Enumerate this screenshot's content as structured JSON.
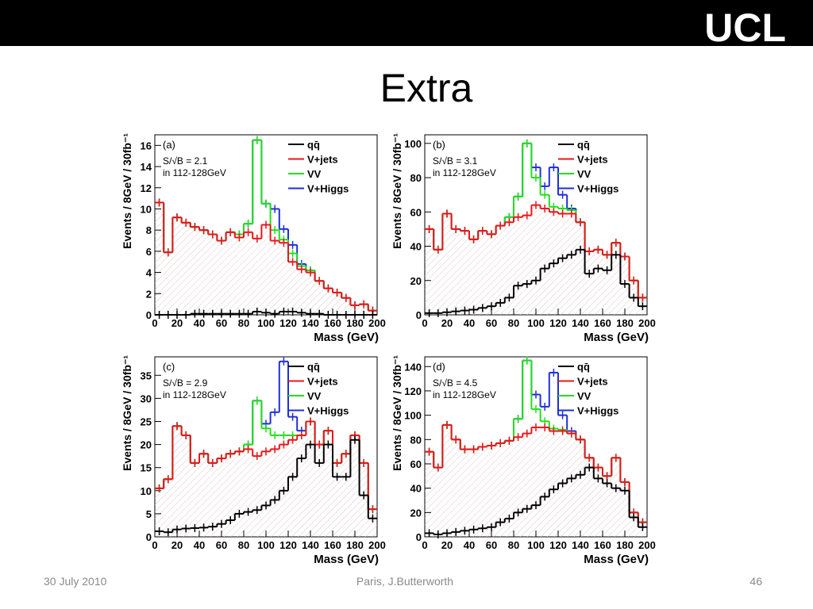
{
  "slide": {
    "title": "Extra",
    "logo": "UCL",
    "date": "30 July 2010",
    "author": "Paris, J.Butterworth",
    "page": "46"
  },
  "chart_data": [
    {
      "type": "histogram",
      "label": "(a)",
      "annotations": [
        "S/√B = 2.1",
        "in 112-128GeV"
      ],
      "xlabel": "Mass (GeV)",
      "ylabel": "Events / 8GeV / 30fb⁻¹",
      "bins": [
        0,
        8,
        16,
        24,
        32,
        40,
        48,
        56,
        64,
        72,
        80,
        88,
        96,
        104,
        112,
        120,
        128,
        136,
        144,
        152,
        160,
        168,
        176,
        184,
        192,
        200
      ],
      "xlim": [
        0,
        200
      ],
      "xticks": [
        0,
        20,
        40,
        60,
        80,
        100,
        120,
        140,
        160,
        180,
        200
      ],
      "ylim": [
        0,
        17
      ],
      "yticks": [
        0,
        2,
        4,
        6,
        8,
        10,
        12,
        14,
        16
      ],
      "stacked": true,
      "legend": "upper right",
      "series": [
        {
          "name": "qq̄",
          "color": "#000000",
          "values": [
            0,
            0,
            0,
            0,
            0.1,
            0.1,
            0.1,
            0.1,
            0.1,
            0.1,
            0.1,
            0.3,
            0.2,
            0.1,
            0.3,
            0.3,
            0.2,
            0.1,
            0.1,
            0,
            0,
            0,
            0,
            0,
            0
          ]
        },
        {
          "name": "V+jets",
          "color": "#e8161b",
          "values": [
            10.6,
            5.9,
            9.2,
            8.7,
            8.2,
            7.9,
            7.5,
            6.9,
            7.7,
            7.2,
            7.7,
            6.9,
            8.3,
            6.9,
            6.5,
            4.7,
            4.1,
            3.9,
            3.1,
            2.5,
            2.1,
            1.6,
            0.9,
            1.0,
            0.4
          ]
        },
        {
          "name": "VV",
          "color": "#22e01c",
          "values": [
            0,
            0,
            0,
            0,
            0,
            0,
            0,
            0,
            0,
            0.3,
            0.8,
            9.3,
            2.0,
            1.0,
            0.3,
            0.8,
            0.3,
            0.2,
            0,
            0,
            0,
            0,
            0,
            0,
            0
          ]
        },
        {
          "name": "V+Higgs",
          "color": "#1f2fd8",
          "values": [
            0,
            0,
            0,
            0,
            0,
            0,
            0,
            0,
            0,
            0,
            0,
            0,
            0,
            2.0,
            1.0,
            0.8,
            0.2,
            0,
            0,
            0,
            0,
            0,
            0,
            0,
            0
          ]
        }
      ]
    },
    {
      "type": "histogram",
      "label": "(b)",
      "annotations": [
        "S/√B = 3.1",
        "in 112-128GeV"
      ],
      "xlabel": "Mass (GeV)",
      "ylabel": "Events / 8GeV / 30fb⁻¹",
      "bins": [
        0,
        8,
        16,
        24,
        32,
        40,
        48,
        56,
        64,
        72,
        80,
        88,
        96,
        104,
        112,
        120,
        128,
        136,
        144,
        152,
        160,
        168,
        176,
        184,
        192,
        200
      ],
      "xlim": [
        0,
        200
      ],
      "xticks": [
        0,
        20,
        40,
        60,
        80,
        100,
        120,
        140,
        160,
        180,
        200
      ],
      "ylim": [
        0,
        105
      ],
      "yticks": [
        0,
        20,
        40,
        60,
        80,
        100
      ],
      "stacked": true,
      "legend": "upper right",
      "series": [
        {
          "name": "qq̄",
          "color": "#000000",
          "values": [
            1,
            1,
            1.5,
            2,
            2.5,
            3,
            4,
            5,
            7,
            10,
            17,
            18,
            20,
            27,
            30,
            33,
            35,
            38,
            24,
            27,
            26,
            35,
            18,
            10,
            5
          ]
        },
        {
          "name": "V+jets",
          "color": "#e8161b",
          "values": [
            49,
            37,
            57.5,
            48,
            46.5,
            41,
            45,
            42,
            45,
            44,
            40,
            40,
            44,
            35,
            30,
            26,
            24,
            16,
            13,
            11,
            9,
            7,
            16,
            10,
            5
          ]
        },
        {
          "name": "VV",
          "color": "#22e01c",
          "values": [
            0,
            0,
            0,
            0,
            0,
            0,
            0,
            0,
            0,
            3,
            12,
            42,
            16,
            8,
            3,
            3,
            2,
            0,
            0,
            0,
            0,
            0,
            0,
            0,
            0
          ]
        },
        {
          "name": "V+Higgs",
          "color": "#1f2fd8",
          "values": [
            0,
            0,
            0,
            0,
            0,
            0,
            0,
            0,
            0,
            0,
            0,
            0,
            6,
            5,
            23,
            8,
            1,
            0,
            0,
            0,
            0,
            0,
            0,
            0,
            0
          ]
        }
      ]
    },
    {
      "type": "histogram",
      "label": "(c)",
      "annotations": [
        "S/√B = 2.9",
        "in 112-128GeV"
      ],
      "xlabel": "Mass (GeV)",
      "ylabel": "Events / 8GeV / 30fb⁻¹",
      "bins": [
        0,
        8,
        16,
        24,
        32,
        40,
        48,
        56,
        64,
        72,
        80,
        88,
        96,
        104,
        112,
        120,
        128,
        136,
        144,
        152,
        160,
        168,
        176,
        184,
        192,
        200
      ],
      "xlim": [
        0,
        200
      ],
      "xticks": [
        0,
        20,
        40,
        60,
        80,
        100,
        120,
        140,
        160,
        180,
        200
      ],
      "ylim": [
        0,
        39
      ],
      "yticks": [
        0,
        5,
        10,
        15,
        20,
        25,
        30,
        35
      ],
      "stacked": true,
      "legend": "upper right",
      "series": [
        {
          "name": "qq̄",
          "color": "#000000",
          "values": [
            1.2,
            1.0,
            1.6,
            1.8,
            1.9,
            2.0,
            2.2,
            2.8,
            3.6,
            5.0,
            5.4,
            5.8,
            6.8,
            8,
            10,
            13,
            17,
            20,
            16,
            20,
            13,
            13,
            21,
            9,
            4
          ]
        },
        {
          "name": "V+jets",
          "color": "#e8161b",
          "values": [
            9.3,
            11.5,
            22.4,
            20.2,
            14.1,
            16,
            13.8,
            14.2,
            14.4,
            13.5,
            13.6,
            11.7,
            11.7,
            11,
            10,
            8,
            5,
            5,
            4,
            3,
            3,
            5,
            1,
            7,
            2
          ]
        },
        {
          "name": "VV",
          "color": "#22e01c",
          "values": [
            0,
            0,
            0,
            0,
            0,
            0,
            0,
            0,
            0,
            0,
            1,
            12,
            5,
            3,
            2,
            1,
            0,
            0,
            0,
            0,
            0,
            0,
            0,
            0,
            0
          ]
        },
        {
          "name": "V+Higgs",
          "color": "#1f2fd8",
          "values": [
            0,
            0,
            0,
            0,
            0,
            0,
            0,
            0,
            0,
            0,
            0,
            0,
            1,
            5,
            16,
            4,
            1,
            0,
            0,
            0,
            0,
            0,
            0,
            0,
            0
          ]
        }
      ]
    },
    {
      "type": "histogram",
      "label": "(d)",
      "annotations": [
        "S/√B = 4.5",
        "in 112-128GeV"
      ],
      "xlabel": "Mass (GeV)",
      "ylabel": "Events / 8GeV / 30fb⁻¹",
      "bins": [
        0,
        8,
        16,
        24,
        32,
        40,
        48,
        56,
        64,
        72,
        80,
        88,
        96,
        104,
        112,
        120,
        128,
        136,
        144,
        152,
        160,
        168,
        176,
        184,
        192,
        200
      ],
      "xlim": [
        0,
        200
      ],
      "xticks": [
        0,
        20,
        40,
        60,
        80,
        100,
        120,
        140,
        160,
        180,
        200
      ],
      "ylim": [
        0,
        148
      ],
      "yticks": [
        0,
        20,
        40,
        60,
        80,
        100,
        120,
        140
      ],
      "stacked": true,
      "legend": "upper right",
      "series": [
        {
          "name": "qq̄",
          "color": "#000000",
          "values": [
            3,
            2,
            3,
            4,
            5,
            6,
            7,
            8,
            12,
            15,
            20,
            23,
            26,
            33,
            39,
            44,
            48,
            51,
            57,
            48,
            44,
            40,
            38,
            16,
            8
          ]
        },
        {
          "name": "V+jets",
          "color": "#e8161b",
          "values": [
            67,
            55,
            89,
            76,
            67,
            66,
            67,
            67,
            65,
            64,
            62,
            62,
            64,
            57,
            48,
            43,
            37,
            29,
            8,
            9,
            6,
            25,
            7,
            4,
            4
          ]
        },
        {
          "name": "VV",
          "color": "#22e01c",
          "values": [
            0,
            0,
            0,
            0,
            0,
            0,
            0,
            0,
            0,
            0,
            15,
            60,
            15,
            5,
            2,
            1,
            0,
            0,
            0,
            0,
            0,
            0,
            0,
            0,
            0
          ]
        },
        {
          "name": "V+Higgs",
          "color": "#1f2fd8",
          "values": [
            0,
            0,
            0,
            0,
            0,
            0,
            0,
            0,
            0,
            0,
            0,
            0,
            12,
            12,
            46,
            12,
            2,
            0,
            0,
            0,
            0,
            0,
            0,
            0,
            0
          ]
        }
      ]
    }
  ]
}
